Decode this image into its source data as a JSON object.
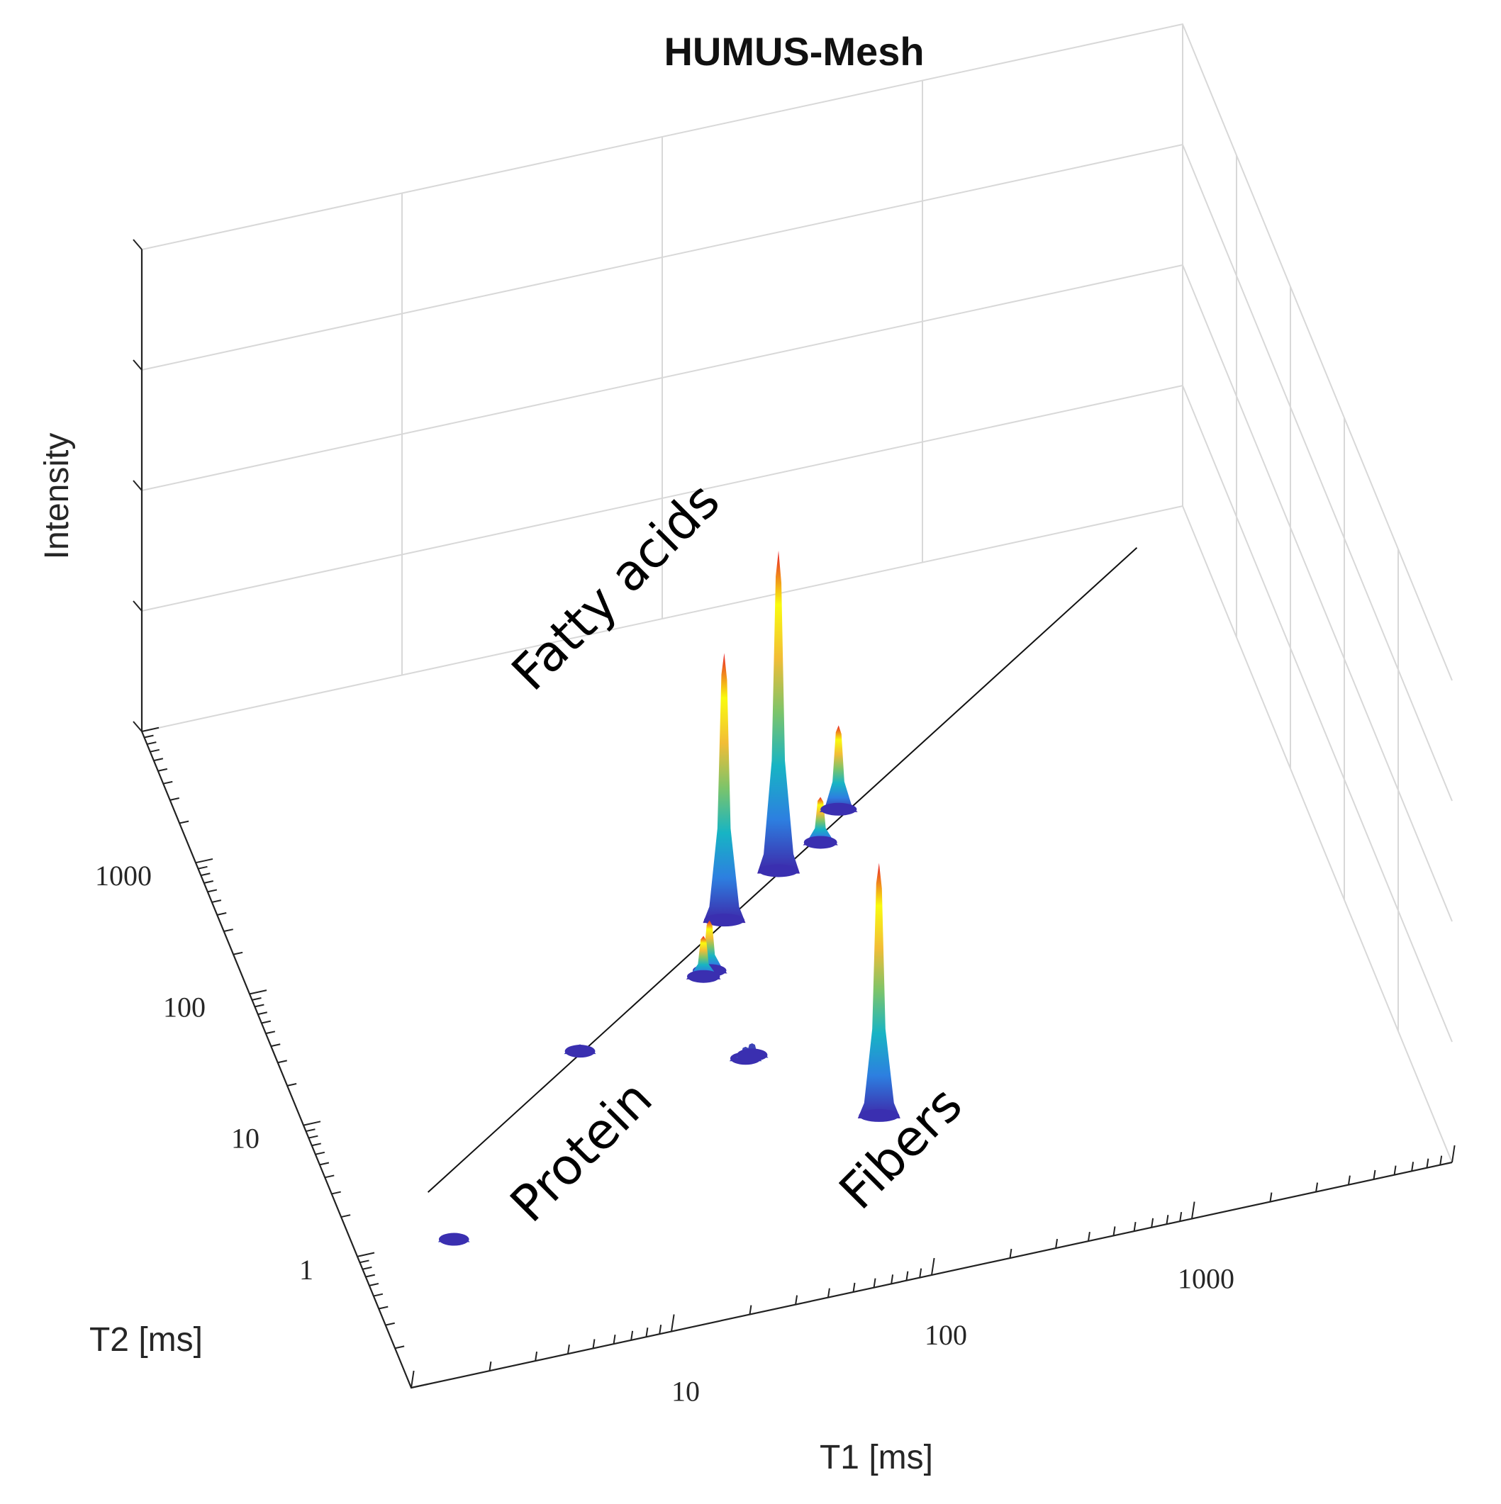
{
  "chart_data": {
    "type": "surface3d",
    "title": "HUMUS-Mesh",
    "zlabel": "Intensity",
    "xlabel": "T1 [ms]",
    "ylabel": "T2 [ms]",
    "x_scale": "log",
    "y_scale": "log",
    "x_ticks": [
      10,
      100,
      1000
    ],
    "x_tick_labels": [
      "10",
      "100",
      "1000"
    ],
    "y_ticks": [
      1,
      10,
      100,
      1000
    ],
    "y_tick_labels": [
      "1",
      "10",
      "100",
      "1000"
    ],
    "xlim": [
      1,
      10000
    ],
    "ylim": [
      0.1,
      10000
    ],
    "zlim": [
      0,
      1
    ],
    "grid": true,
    "colormap": "parula",
    "colormap_stops": [
      "#3e26a8",
      "#2d7fe0",
      "#17b4c4",
      "#7cc46a",
      "#f2bd36",
      "#f9fb0e",
      "#e8202a"
    ],
    "diagonal": {
      "t1_start": 2.2,
      "t2_start": 2.2,
      "t1_end": 6000,
      "t2_end": 6000
    },
    "peaks": [
      {
        "name": "Fatty acids",
        "t1": 60,
        "t2": 60,
        "intensity": 0.56
      },
      {
        "name": "Fatty acids",
        "t1": 110,
        "t2": 110,
        "intensity": 0.67
      },
      {
        "name": "Fatty acids",
        "t1": 45,
        "t2": 28,
        "intensity": 0.11
      },
      {
        "name": "Fatty acids",
        "t1": 42,
        "t2": 26,
        "intensity": 0.09
      },
      {
        "name": "Fatty acids",
        "t1": 170,
        "t2": 150,
        "intensity": 0.1
      },
      {
        "name": "Fatty acids",
        "t1": 220,
        "t2": 240,
        "intensity": 0.18
      },
      {
        "name": "Protein",
        "t1": 12,
        "t2": 12,
        "intensity": 0.02
      },
      {
        "name": "Protein",
        "t1": 45,
        "t2": 6,
        "intensity": 0.03
      },
      {
        "name": "Protein",
        "t1": 48,
        "t2": 6.2,
        "intensity": 0.03
      },
      {
        "name": "Protein",
        "t1": 2.3,
        "t2": 0.9,
        "intensity": 0.015
      },
      {
        "name": "Fibers",
        "t1": 110,
        "t2": 1.5,
        "intensity": 0.53
      }
    ],
    "annotations": [
      "Fatty acids",
      "Protein",
      "Fibers"
    ]
  }
}
